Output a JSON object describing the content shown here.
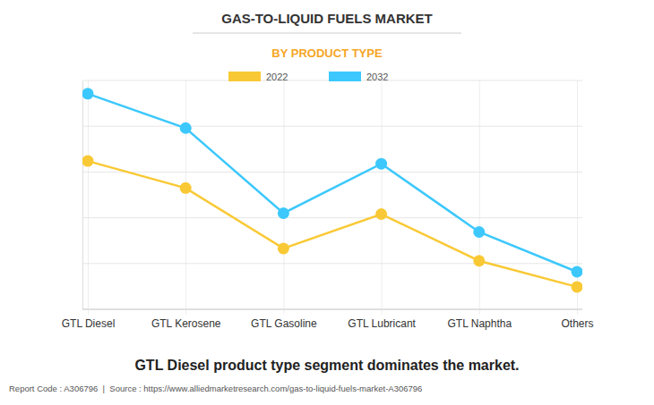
{
  "chart_data": {
    "type": "line",
    "title": "GAS-TO-LIQUID FUELS MARKET",
    "subtitle": "BY PRODUCT TYPE",
    "categories": [
      "GTL Diesel",
      "GTL Kerosene",
      "GTL Gasoline",
      "GTL Lubricant",
      "GTL Naphtha",
      "Others"
    ],
    "series": [
      {
        "name": "2022",
        "color": "#f9c935",
        "values": [
          3.24,
          2.65,
          1.33,
          2.08,
          1.06,
          0.49
        ]
      },
      {
        "name": "2032",
        "color": "#3cc8fc",
        "values": [
          4.71,
          3.96,
          2.1,
          3.18,
          1.69,
          0.82
        ]
      }
    ],
    "ylim": [
      0,
      5
    ],
    "yticks": [
      0,
      1,
      2,
      3,
      4,
      5
    ],
    "grid": true,
    "legend": "top",
    "tick_labels": "x",
    "marker": "circle",
    "line_style": "solid",
    "annotations": [
      "GTL Diesel product type segment dominates the market.",
      "Report Code : A306796  |  Source : https://www.alliedmarketresearch.com/gas-to-liquid-fuels-market-A306796"
    ]
  }
}
